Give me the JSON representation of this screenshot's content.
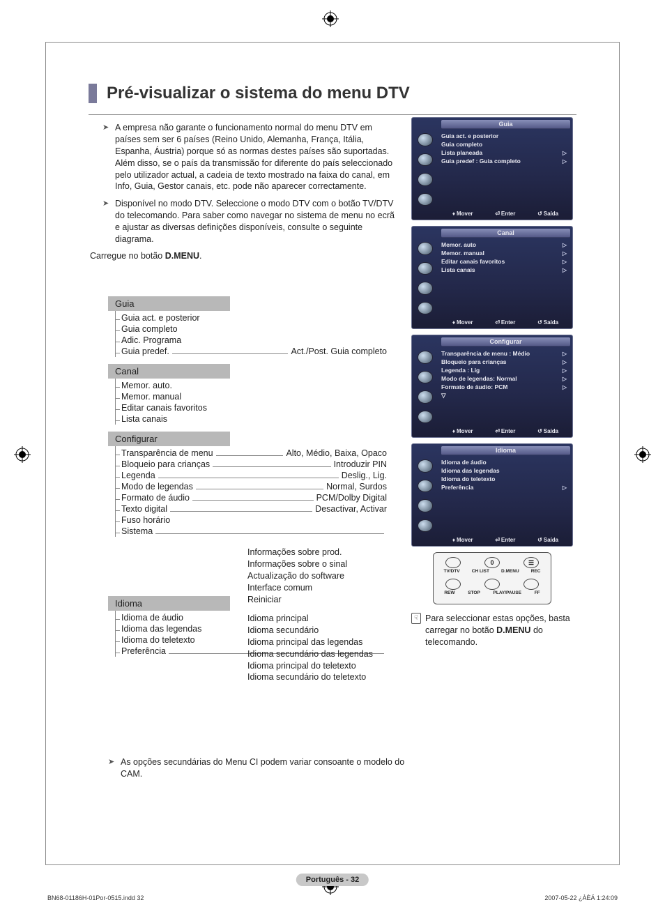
{
  "meta": {
    "title": "Pré-visualizar o sistema do menu DTV",
    "page_label": "Português - 32",
    "footer_left": "BN68-01186H-01Por-0515.indd   32",
    "footer_right": "2007-05-22   ¿ÀÈÄ 1:24:09"
  },
  "intro": {
    "p1": "A empresa não garante o funcionamento normal do menu DTV em países sem ser 6 países (Reino Unido, Alemanha, França, Itália, Espanha, Áustria) porque só as normas destes países são suportadas. Além disso, se o país da transmissão for diferente do país seleccionado pelo utilizador actual, a cadeia de texto mostrado na faixa do canal, em Info, Guia, Gestor canais, etc. pode não aparecer correctamente.",
    "p2": "Disponível no modo DTV. Seleccione o modo DTV com o botão TV/DTV do telecomando. Para saber como navegar no sistema de menu no ecrã e ajustar as diversas definições disponíveis, consulte o seguinte diagrama.",
    "press_pre": "Carregue no botão ",
    "press_btn": "D.MENU",
    "press_post": "."
  },
  "tree": {
    "guia": {
      "header": "Guia",
      "items": [
        "Guia act. e posterior",
        "Guia completo",
        "Adic. Programa",
        "Guia predef."
      ],
      "guia_predef_value": "Act./Post. Guia completo"
    },
    "canal": {
      "header": "Canal",
      "items": [
        "Memor. auto.",
        "Memor. manual",
        "Editar canais favoritos",
        "Lista canais"
      ]
    },
    "config": {
      "header": "Configurar",
      "items": [
        {
          "label": "Transparência de menu",
          "value": "Alto, Médio, Baixa, Opaco"
        },
        {
          "label": "Bloqueio para crianças",
          "value": "Introduzir PIN"
        },
        {
          "label": "Legenda",
          "value": "Deslig., Lig."
        },
        {
          "label": "Modo de legendas",
          "value": "Normal, Surdos"
        },
        {
          "label": "Formato de áudio",
          "value": "PCM/Dolby Digital"
        },
        {
          "label": "Texto digital",
          "value": "Desactivar, Activar"
        },
        {
          "label": "Fuso horário",
          "value": ""
        },
        {
          "label": "Sistema",
          "value": ""
        }
      ],
      "sistema_block": [
        "Informações sobre prod.",
        "Informações sobre o sinal",
        "Actualização do software",
        "Interface comum",
        "Reiniciar"
      ]
    },
    "idioma": {
      "header": "Idioma",
      "items": [
        "Idioma de áudio",
        "Idioma das legendas",
        "Idioma do teletexto",
        "Preferência"
      ],
      "pref_block": [
        "Idioma principal",
        "Idioma secundário",
        "Idioma principal das legendas",
        "Idioma secundário das legendas",
        "Idioma principal do teletexto",
        "Idioma secundário do teletexto"
      ]
    }
  },
  "osd": {
    "footer": {
      "move": "Mover",
      "enter": "Enter",
      "exit": "Saída"
    },
    "guia": {
      "title": "Guia",
      "rows": [
        {
          "label": "Guia act. e posterior",
          "tri": false
        },
        {
          "label": "Guia completo",
          "tri": false
        },
        {
          "label": "Lista planeada",
          "tri": true
        },
        {
          "label": "Guia predef",
          "suffix": ": Guia completo",
          "tri": true
        }
      ]
    },
    "canal": {
      "title": "Canal",
      "rows": [
        {
          "label": "Memor. auto",
          "tri": true
        },
        {
          "label": "Memor. manual",
          "tri": true
        },
        {
          "label": "Editar canais favoritos",
          "tri": true
        },
        {
          "label": "Lista canais",
          "tri": true
        }
      ]
    },
    "config": {
      "title": "Configurar",
      "rows": [
        {
          "label": "Transparência de menu : Médio",
          "tri": true
        },
        {
          "label": "Bloqueio para crianças",
          "tri": true
        },
        {
          "label": "Legenda",
          "suffix": ": Lig",
          "tri": true
        },
        {
          "label": "Modo de legendas: Normal",
          "tri": true
        },
        {
          "label": "Formato de áudio: PCM",
          "tri": true
        },
        {
          "label": "▽",
          "tri": false
        }
      ]
    },
    "idioma": {
      "title": "Idioma",
      "rows": [
        {
          "label": "Idioma de áudio",
          "tri": false
        },
        {
          "label": "Idioma das legendas",
          "tri": false
        },
        {
          "label": "Idioma do teletexto",
          "tri": false
        },
        {
          "label": "Preferência",
          "tri": true
        }
      ]
    }
  },
  "remote": {
    "btn_zero": "0",
    "labels1": [
      "TV/DTV",
      "CH LIST",
      "D.MENU",
      "REC"
    ],
    "labels2": [
      "REW",
      "STOP",
      "PLAY/PAUSE",
      "FF"
    ]
  },
  "note": {
    "text_pre": "Para seleccionar estas opções, basta carregar no botão ",
    "btn": "D.MENU",
    "text_post": " do telecomando."
  },
  "footnote": "As opções secundárias do Menu CI podem variar consoante o modelo do CAM.",
  "colors": {
    "osd_bg_top": "#2b3560",
    "osd_bg_bottom": "#1b1d36",
    "tree_header_bg": "#b8b8b8",
    "title_bar": "#7a7a9a"
  }
}
